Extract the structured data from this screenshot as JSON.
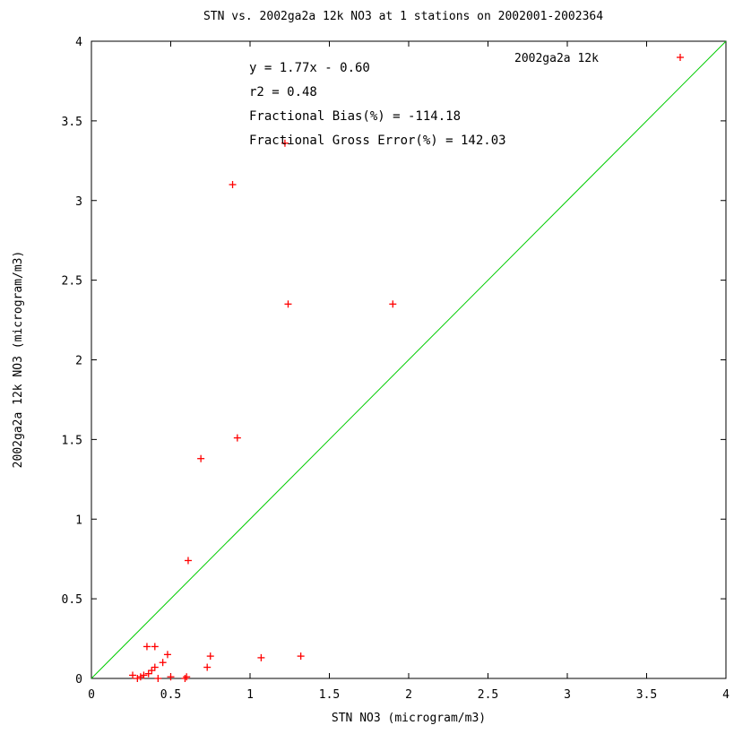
{
  "chart_data": {
    "type": "scatter",
    "title": "STN vs. 2002ga2a 12k NO3 at 1 stations on 2002001-2002364",
    "xlabel": "STN NO3  (microgram/m3)",
    "ylabel": "2002ga2a 12k NO3  (microgram/m3)",
    "xlim": [
      0,
      4
    ],
    "ylim": [
      0,
      4
    ],
    "xticks": [
      "0",
      "0.5",
      "1",
      "1.5",
      "2",
      "2.5",
      "3",
      "3.5",
      "4"
    ],
    "yticks": [
      "0",
      "0.5",
      "1",
      "1.5",
      "2",
      "2.5",
      "3",
      "3.5",
      "4"
    ],
    "grid": false,
    "legend_position": "top-right",
    "annotations": [
      "y = 1.77x - 0.60",
      "r2 = 0.48",
      "Fractional Bias(%) = -114.18",
      "Fractional Gross Error(%) = 142.03"
    ],
    "reference_line": {
      "type": "1:1",
      "color": "#00cc00"
    },
    "series": [
      {
        "name": "2002ga2a 12k",
        "marker": "+",
        "color": "#ff0000",
        "points": [
          [
            1.22,
            3.36
          ],
          [
            0.89,
            3.1
          ],
          [
            1.24,
            2.35
          ],
          [
            1.9,
            2.35
          ],
          [
            0.92,
            1.51
          ],
          [
            0.69,
            1.38
          ],
          [
            0.61,
            0.74
          ],
          [
            0.35,
            0.2
          ],
          [
            0.4,
            0.2
          ],
          [
            0.48,
            0.15
          ],
          [
            0.45,
            0.1
          ],
          [
            0.4,
            0.07
          ],
          [
            0.38,
            0.05
          ],
          [
            0.36,
            0.03
          ],
          [
            0.33,
            0.02
          ],
          [
            0.31,
            0.01
          ],
          [
            0.29,
            0.0
          ],
          [
            0.26,
            0.02
          ],
          [
            0.42,
            0.0
          ],
          [
            0.5,
            0.01
          ],
          [
            0.59,
            0.0
          ],
          [
            0.6,
            0.01
          ],
          [
            0.73,
            0.07
          ],
          [
            0.75,
            0.14
          ],
          [
            1.07,
            0.13
          ],
          [
            1.32,
            0.14
          ]
        ]
      }
    ]
  }
}
